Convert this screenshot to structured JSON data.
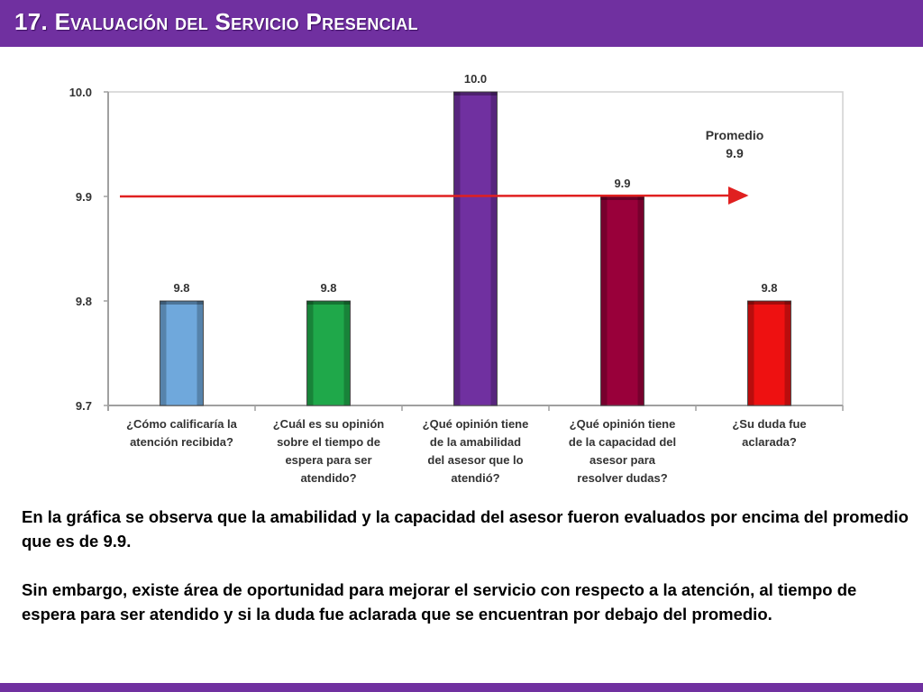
{
  "slide": {
    "title": "17. Evaluación del Servicio Presencial",
    "accent_color": "#7030a0"
  },
  "chart_data": {
    "type": "bar",
    "categories": [
      [
        "¿Cómo calificaría la",
        "atención recibida?"
      ],
      [
        "¿Cuál es su opinión",
        "sobre el tiempo de",
        "espera para ser",
        "atendido?"
      ],
      [
        "¿Qué opinión tiene",
        "de la amabilidad",
        "del asesor que lo",
        "atendió?"
      ],
      [
        "¿Qué opinión tiene",
        "de la capacidad del",
        "asesor para",
        "resolver dudas?"
      ],
      [
        "¿Su duda fue",
        "aclarada?"
      ]
    ],
    "values": [
      9.8,
      9.8,
      10.0,
      9.9,
      9.8
    ],
    "value_labels": [
      "9.8",
      "9.8",
      "10.0",
      "9.9",
      "9.8"
    ],
    "bar_colors": [
      "#6fa8dc",
      "#1fa84a",
      "#7030a0",
      "#99003a",
      "#ee1111"
    ],
    "ylim": [
      9.7,
      10.0
    ],
    "yticks": [
      9.7,
      9.8,
      9.9,
      10.0
    ],
    "ytick_labels": [
      "9.7",
      "9.8",
      "9.9",
      "10.0"
    ],
    "average": {
      "value": 9.9,
      "label_line1": "Promedio",
      "label_line2": "9.9",
      "color": "#e02020"
    },
    "grid": false,
    "legend": "none"
  },
  "description": {
    "paragraph1": "En la gráfica se observa que la amabilidad y la capacidad del asesor  fueron evaluados por encima del promedio que es de 9.9.",
    "paragraph2": "Sin embargo, existe área de oportunidad para mejorar el servicio con respecto a la atención, al tiempo de espera para ser atendido y si la duda fue aclarada que se encuentran por debajo del promedio."
  }
}
